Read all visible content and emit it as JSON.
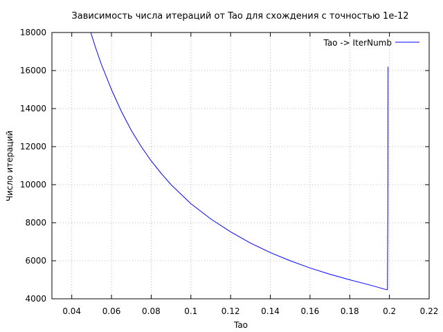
{
  "chart_data": {
    "type": "line",
    "title": "Зависимость числа итераций от Tao для схождения с точностью 1e-12",
    "xlabel": "Tao",
    "ylabel": "Число итераций",
    "xlim": [
      0.03,
      0.22
    ],
    "ylim": [
      4000,
      18000
    ],
    "xticks": [
      0.04,
      0.06,
      0.08,
      0.1,
      0.12,
      0.14,
      0.16,
      0.18,
      0.2,
      0.22
    ],
    "xtick_labels": [
      "0.04",
      "0.06",
      "0.08",
      "0.1",
      "0.12",
      "0.14",
      "0.16",
      "0.18",
      "0.2",
      "0.22"
    ],
    "yticks": [
      4000,
      6000,
      8000,
      10000,
      12000,
      14000,
      16000,
      18000
    ],
    "ytick_labels": [
      "4000",
      "6000",
      "8000",
      "10000",
      "12000",
      "14000",
      "16000",
      "18000"
    ],
    "grid": true,
    "legend_position": "top-right",
    "series": [
      {
        "name": "Tao -> IterNumb",
        "color": "#0000ff",
        "x": [
          0.0496,
          0.052,
          0.055,
          0.06,
          0.065,
          0.07,
          0.075,
          0.08,
          0.085,
          0.09,
          0.095,
          0.1,
          0.11,
          0.12,
          0.13,
          0.14,
          0.15,
          0.16,
          0.17,
          0.18,
          0.19,
          0.1985,
          0.199,
          0.1992,
          0.1993
        ],
        "y": [
          18000,
          17200,
          16300,
          15000,
          13850,
          12850,
          12000,
          11250,
          10600,
          10000,
          9500,
          9000,
          8200,
          7520,
          6930,
          6430,
          6000,
          5620,
          5290,
          5000,
          4730,
          4480,
          4480,
          9000,
          16200
        ]
      }
    ]
  }
}
